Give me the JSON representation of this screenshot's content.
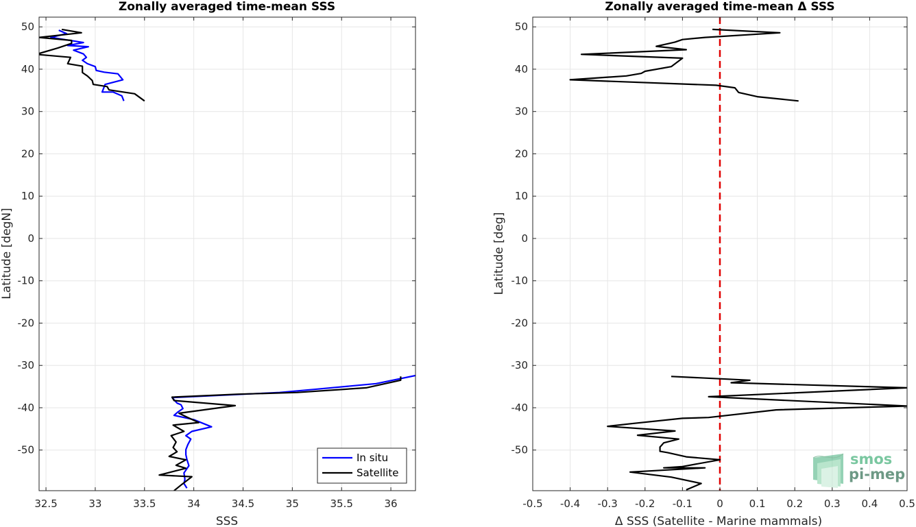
{
  "chart_data": [
    {
      "type": "line",
      "title": "Zonally averaged time-mean SSS",
      "xlabel": "SSS",
      "ylabel": "Latitude [degN]",
      "xlim": [
        32.43,
        36.25
      ],
      "ylim": [
        -59.6,
        52.3
      ],
      "xticks": [
        "32.5",
        "33",
        "33.5",
        "34",
        "34.5",
        "35",
        "35.5",
        "36"
      ],
      "yticks": [
        "50",
        "40",
        "30",
        "20",
        "10",
        "0",
        "-10",
        "-20",
        "-30",
        "-40",
        "-50"
      ],
      "grid": true,
      "legend": {
        "position": "bottom-right",
        "entries": [
          "In situ",
          "Satellite"
        ]
      },
      "series": [
        {
          "name": "In situ",
          "color": "#0000ff",
          "segments": [
            [
              [
                32.63,
                49.2
              ],
              [
                32.71,
                48.4
              ],
              [
                32.55,
                47.5
              ],
              [
                32.88,
                46.3
              ],
              [
                32.72,
                45.6
              ],
              [
                32.93,
                45.3
              ],
              [
                32.78,
                44.5
              ],
              [
                32.88,
                43.6
              ],
              [
                32.91,
                42.8
              ],
              [
                32.87,
                42.1
              ],
              [
                32.92,
                41.3
              ],
              [
                33.0,
                40.6
              ],
              [
                33.01,
                39.7
              ],
              [
                33.09,
                39.3
              ],
              [
                33.23,
                38.9
              ],
              [
                33.28,
                37.5
              ],
              [
                33.1,
                36.4
              ],
              [
                33.07,
                34.6
              ],
              [
                33.18,
                34.6
              ],
              [
                33.27,
                33.7
              ],
              [
                33.29,
                32.5
              ]
            ],
            [
              [
                36.25,
                -32.4
              ],
              [
                35.85,
                -34.3
              ],
              [
                35.25,
                -35.6
              ],
              [
                34.87,
                -36.4
              ],
              [
                34.15,
                -37.2
              ],
              [
                33.78,
                -37.6
              ],
              [
                33.83,
                -38.9
              ],
              [
                33.87,
                -39.3
              ],
              [
                33.89,
                -40.2
              ],
              [
                33.84,
                -41.0
              ],
              [
                33.8,
                -41.8
              ],
              [
                34.0,
                -42.8
              ],
              [
                34.18,
                -44.5
              ],
              [
                33.98,
                -45.6
              ],
              [
                33.92,
                -46.6
              ],
              [
                33.97,
                -47.4
              ],
              [
                33.94,
                -48.7
              ],
              [
                33.92,
                -49.9
              ],
              [
                33.92,
                -51.1
              ],
              [
                33.93,
                -52.2
              ],
              [
                33.95,
                -53.7
              ],
              [
                33.9,
                -55.4
              ],
              [
                33.91,
                -56.9
              ],
              [
                33.9,
                -57.9
              ],
              [
                33.93,
                -59.0
              ]
            ]
          ]
        },
        {
          "name": "Satellite",
          "color": "#000000",
          "segments": [
            [
              [
                32.66,
                49.4
              ],
              [
                32.86,
                48.6
              ],
              [
                32.43,
                47.5
              ],
              [
                32.76,
                46.8
              ],
              [
                32.76,
                46.1
              ],
              [
                32.62,
                45.0
              ],
              [
                32.4,
                43.5
              ],
              [
                32.75,
                42.8
              ],
              [
                32.72,
                41.3
              ],
              [
                32.87,
                40.7
              ],
              [
                32.87,
                39.2
              ],
              [
                32.92,
                38.4
              ],
              [
                32.97,
                37.3
              ],
              [
                32.98,
                36.4
              ],
              [
                33.12,
                35.9
              ],
              [
                33.14,
                35.1
              ],
              [
                33.4,
                34.2
              ],
              [
                33.5,
                32.5
              ]
            ],
            [
              [
                36.1,
                -32.6
              ],
              [
                36.1,
                -33.5
              ],
              [
                35.75,
                -35.3
              ],
              [
                35.05,
                -36.4
              ],
              [
                34.45,
                -36.8
              ],
              [
                33.78,
                -37.5
              ],
              [
                33.8,
                -38.3
              ],
              [
                34.42,
                -39.5
              ],
              [
                33.85,
                -41.3
              ],
              [
                33.93,
                -42.2
              ],
              [
                34.05,
                -43.5
              ],
              [
                33.79,
                -44.1
              ],
              [
                33.9,
                -45.6
              ],
              [
                33.77,
                -46.6
              ],
              [
                33.82,
                -48.1
              ],
              [
                33.79,
                -49.4
              ],
              [
                33.83,
                -50.4
              ],
              [
                33.75,
                -51.5
              ],
              [
                33.92,
                -52.3
              ],
              [
                33.82,
                -53.6
              ],
              [
                33.92,
                -54.3
              ],
              [
                33.65,
                -55.9
              ],
              [
                33.98,
                -56.3
              ],
              [
                33.88,
                -58.1
              ],
              [
                33.8,
                -59.6
              ]
            ]
          ]
        }
      ]
    },
    {
      "type": "line",
      "title": "Zonally averaged time-mean Δ SSS",
      "xlabel": "Δ SSS (Satellite - Marine mammals)",
      "ylabel": "Latitude [deg]",
      "xlim": [
        -0.5,
        0.5
      ],
      "ylim": [
        -59.6,
        52.3
      ],
      "xticks": [
        "-0.5",
        "-0.4",
        "-0.3",
        "-0.2",
        "-0.1",
        "0",
        "0.1",
        "0.2",
        "0.3",
        "0.4",
        "0.5"
      ],
      "yticks": [
        "50",
        "40",
        "30",
        "20",
        "10",
        "0",
        "-10",
        "-20",
        "-30",
        "-40",
        "-50"
      ],
      "grid": true,
      "reference_line": {
        "x": 0,
        "color": "#e00000",
        "style": "dashed"
      },
      "series": [
        {
          "color": "#000000",
          "segments": [
            [
              [
                -0.02,
                49.4
              ],
              [
                0.16,
                48.6
              ],
              [
                -0.04,
                47.5
              ],
              [
                -0.1,
                47.0
              ],
              [
                -0.12,
                46.4
              ],
              [
                -0.14,
                46.0
              ],
              [
                -0.17,
                45.4
              ],
              [
                -0.09,
                44.6
              ],
              [
                -0.37,
                43.5
              ],
              [
                -0.1,
                42.6
              ],
              [
                -0.13,
                40.6
              ],
              [
                -0.2,
                39.5
              ],
              [
                -0.21,
                39.0
              ],
              [
                -0.25,
                38.4
              ],
              [
                -0.4,
                37.5
              ],
              [
                -0.01,
                36.2
              ],
              [
                0.04,
                35.6
              ],
              [
                0.05,
                34.5
              ],
              [
                0.1,
                33.5
              ],
              [
                0.21,
                32.5
              ]
            ],
            [
              [
                -0.13,
                -32.6
              ],
              [
                0.08,
                -33.5
              ],
              [
                0.03,
                -34.1
              ],
              [
                0.5,
                -35.3
              ],
              [
                -0.03,
                -37.4
              ],
              [
                0.5,
                -39.6
              ],
              [
                0.15,
                -40.5
              ],
              [
                -0.03,
                -42.3
              ],
              [
                -0.1,
                -42.5
              ],
              [
                -0.23,
                -43.7
              ],
              [
                -0.3,
                -44.4
              ],
              [
                -0.12,
                -45.5
              ],
              [
                -0.22,
                -46.5
              ],
              [
                -0.11,
                -47.4
              ],
              [
                -0.15,
                -48.3
              ],
              [
                -0.16,
                -49.3
              ],
              [
                -0.16,
                -50.3
              ],
              [
                -0.14,
                -50.6
              ],
              [
                -0.09,
                -51.6
              ],
              [
                0.0,
                -52.3
              ],
              [
                -0.1,
                -53.9
              ],
              [
                -0.15,
                -54.2
              ],
              [
                -0.04,
                -54.2
              ],
              [
                -0.24,
                -55.2
              ],
              [
                -0.13,
                -56.4
              ],
              [
                -0.05,
                -57.9
              ],
              [
                -0.09,
                -59.4
              ]
            ]
          ]
        }
      ]
    }
  ],
  "logo": {
    "line1": "smos",
    "line2": "pi-mep"
  }
}
